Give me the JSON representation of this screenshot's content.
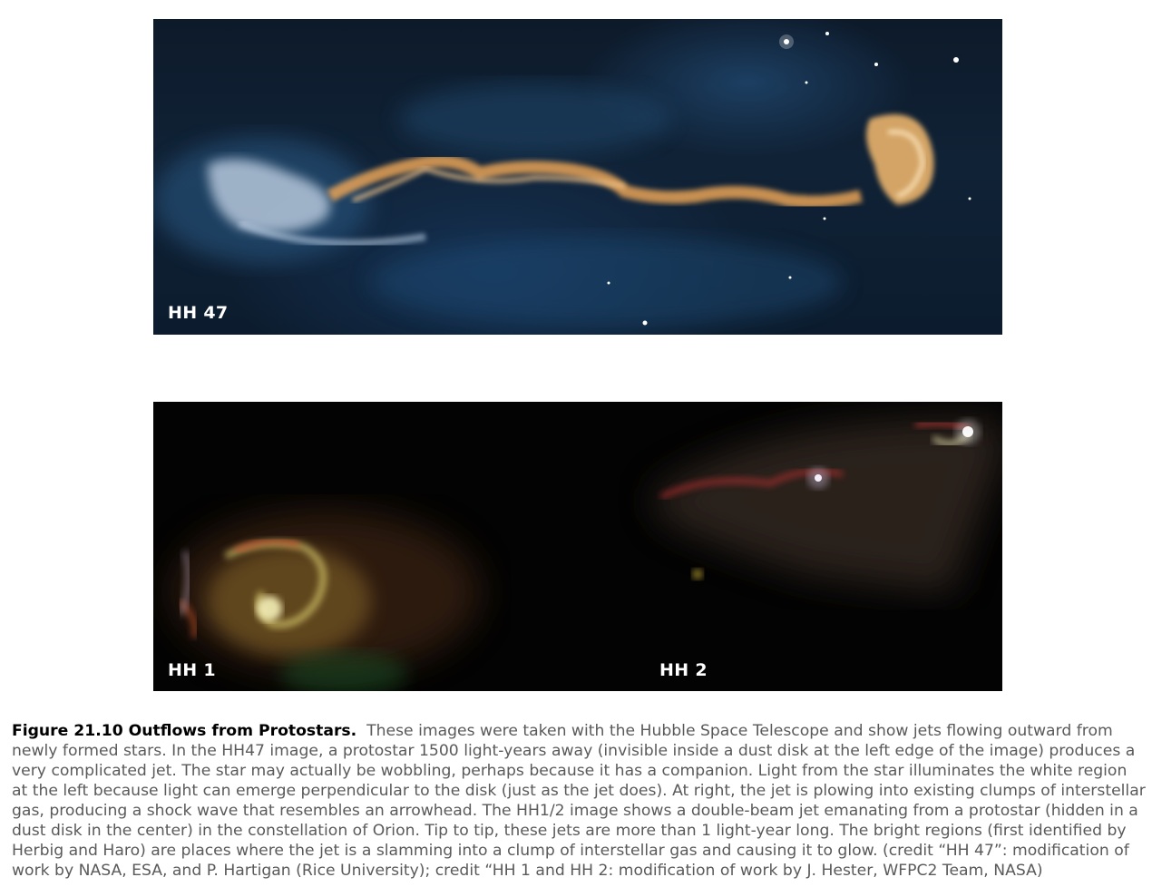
{
  "images": {
    "top": {
      "label": "HH 47"
    },
    "bottom": {
      "label_left": "HH 1",
      "label_right": "HH 2"
    }
  },
  "caption": {
    "title": "Figure 21.10 Outflows from Protostars.",
    "text": "These images were taken with the Hubble Space Telescope and show jets flowing outward from newly formed stars. In the HH47 image, a protostar 1500 light-years away (invisible inside a dust disk at the left edge of the image) produces a very complicated jet. The star may actually be wobbling, perhaps because it has a companion. Light from the star illuminates the white region at the left because light can emerge perpendicular to the disk (just as the jet does). At right, the jet is plowing into existing clumps of interstellar gas, producing a shock wave that resembles an arrowhead. The HH1/2 image shows a double-beam jet emanating from a protostar (hidden in a dust disk in the center) in the constellation of Orion. Tip to tip, these jets are more than 1 light-year long. The bright regions (first identified by Herbig and Haro) are places where the jet is a slamming into a clump of interstellar gas and causing it to glow. (credit “HH 47”: modification of work by NASA, ESA, and P. Hartigan (Rice University); credit “HH 1 and HH 2: modification of work by J. Hester, WFPC2 Team, NASA)"
  }
}
